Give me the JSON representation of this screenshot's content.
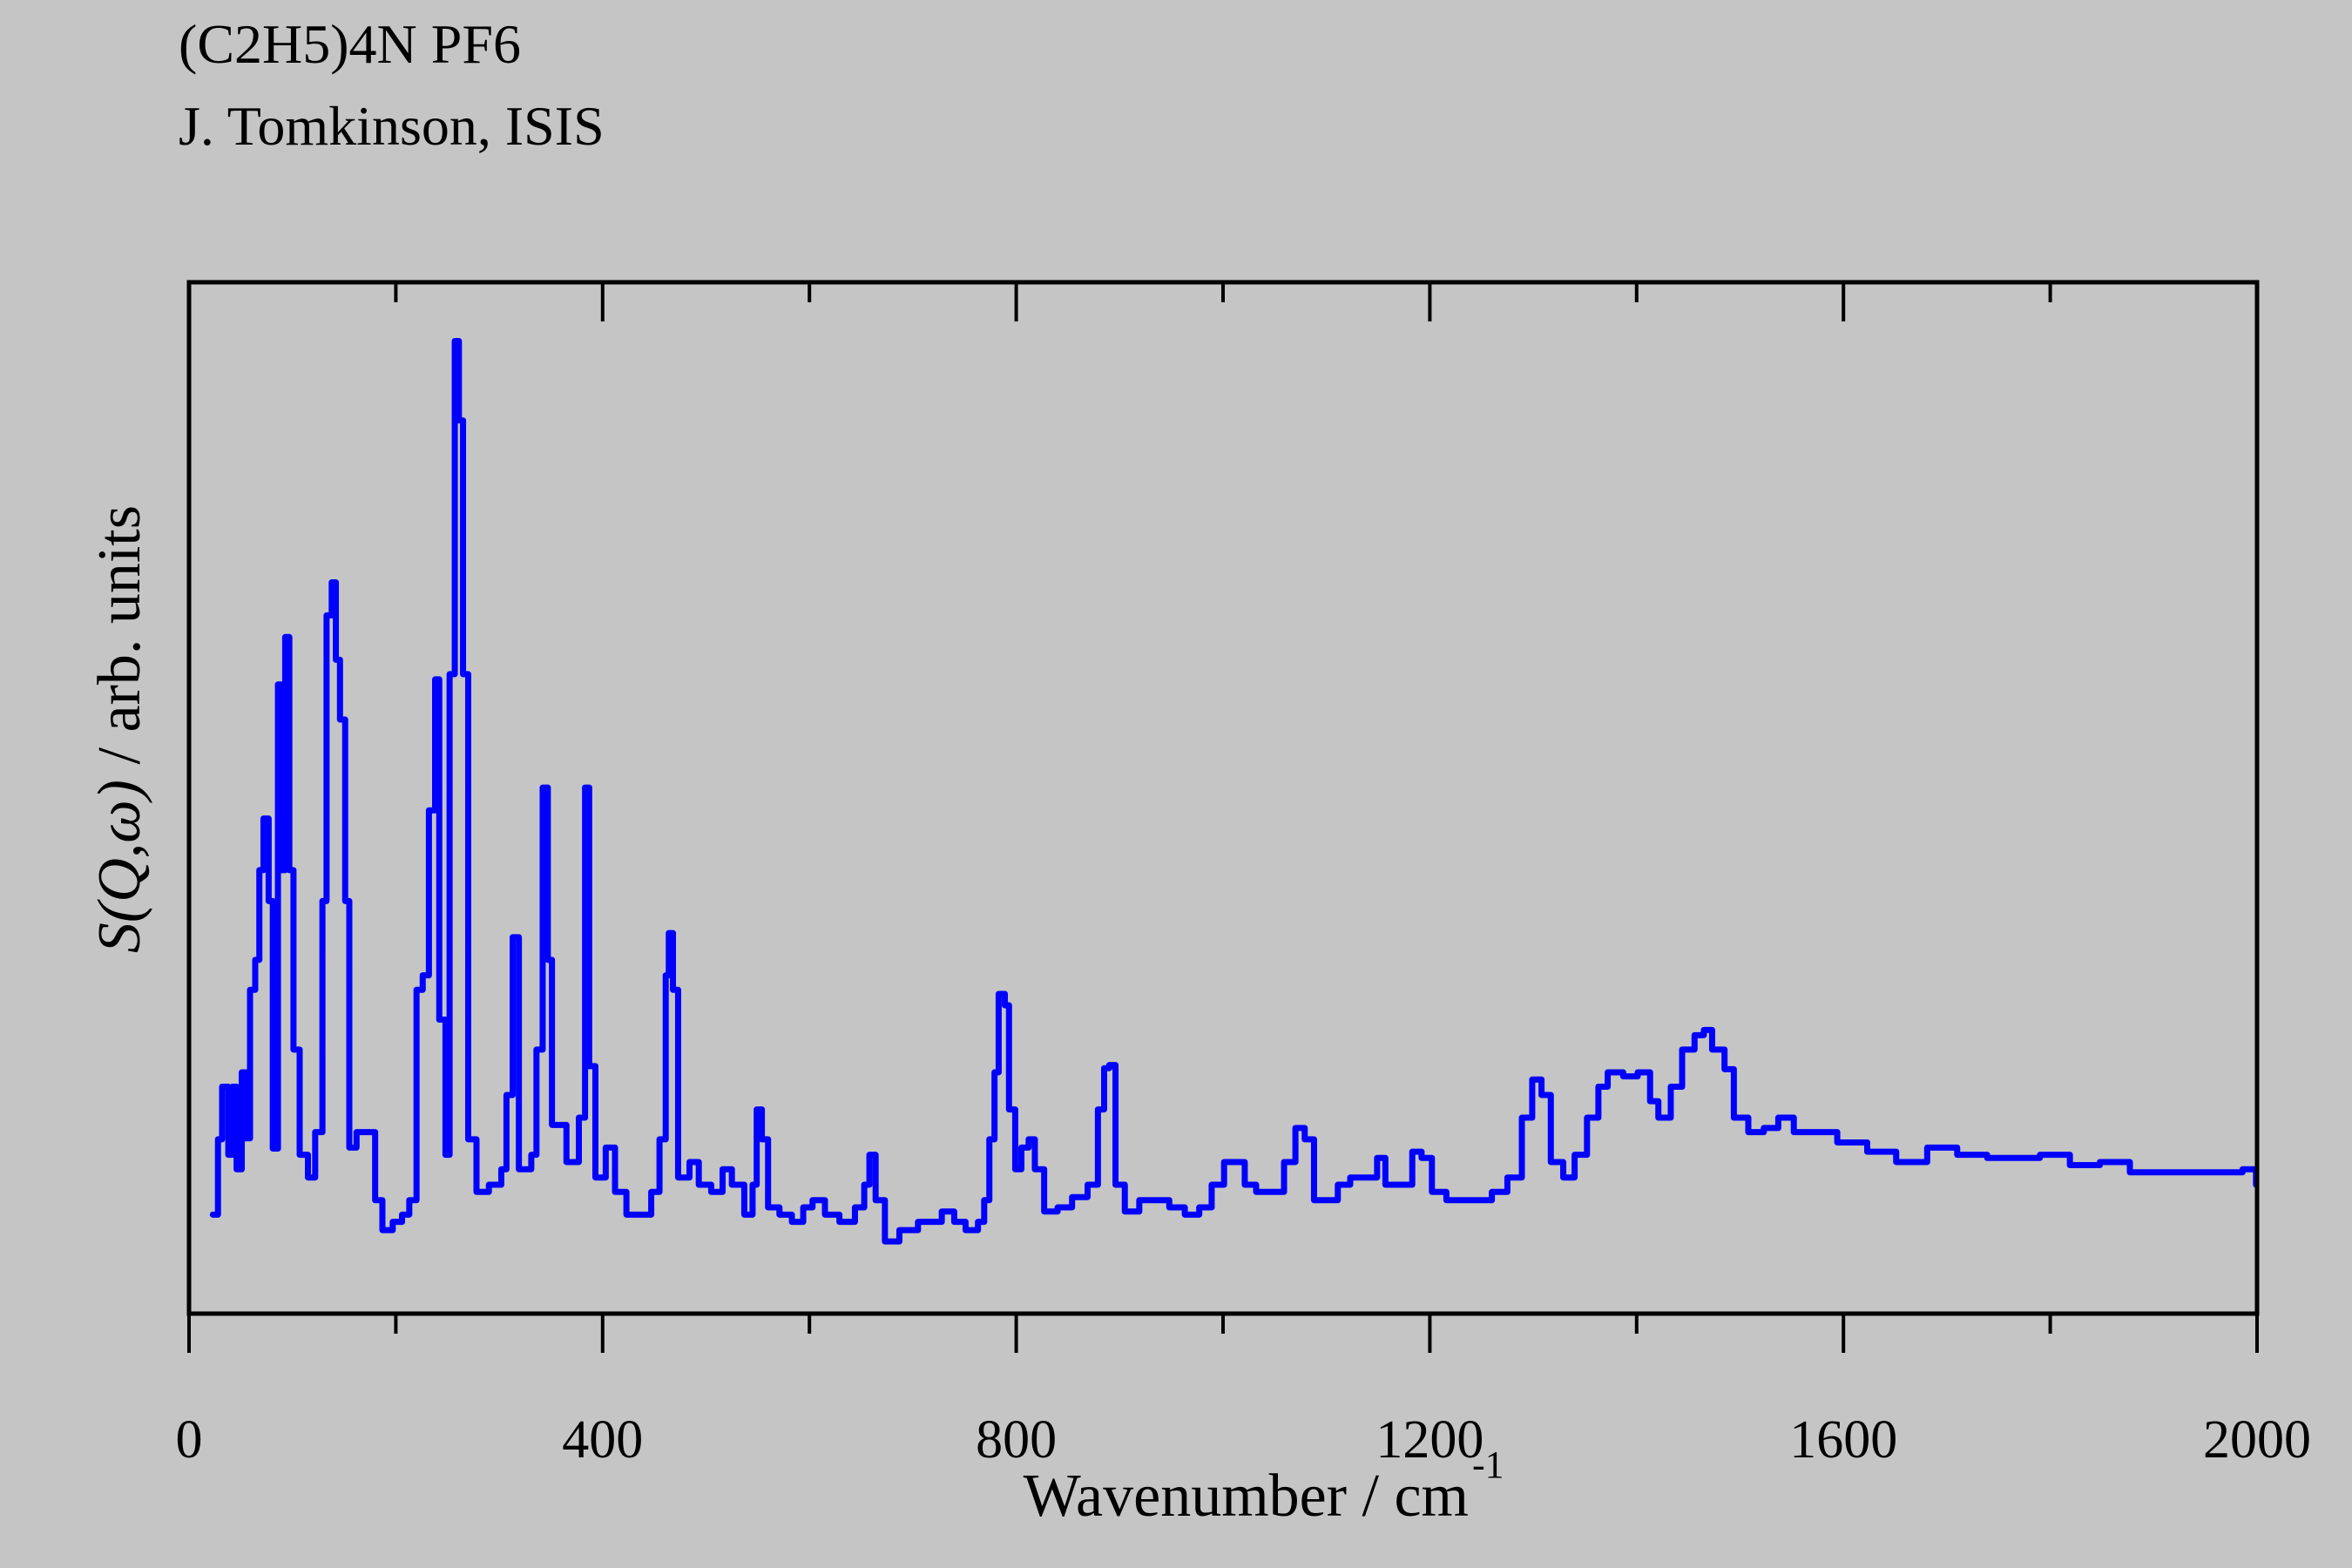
{
  "header": {
    "compound": "(C2H5)4N PF6",
    "author": "J. Tomkinson, ISIS"
  },
  "chart_data": {
    "type": "line",
    "title": "(C2H5)4N PF6",
    "subtitle": "J. Tomkinson, ISIS",
    "xlabel": "Wavenumber / cm",
    "xlabel_superscript": "-1",
    "ylabel_italic": "S(Q,ω)",
    "ylabel_rest": " / arb. units",
    "xlim": [
      0,
      2000
    ],
    "ylim": [
      0,
      100
    ],
    "x_ticks": [
      0,
      400,
      800,
      1200,
      1600,
      2000
    ],
    "x_tick_labels": [
      "0",
      "400",
      "800",
      "1200",
      "1600",
      "2000"
    ],
    "x_minor_ticks": [
      200,
      600,
      1000,
      1400,
      1800
    ],
    "y_ticks_shown": false,
    "grid": false,
    "line_style": "step",
    "series_color": "#0000ff",
    "series": [
      {
        "name": "S(Q,ω)",
        "x": [
          23,
          28,
          32,
          38,
          42,
          46,
          51,
          55,
          59,
          64,
          68,
          72,
          77,
          81,
          86,
          90,
          93,
          97,
          101,
          107,
          115,
          122,
          129,
          133,
          138,
          142,
          146,
          151,
          155,
          162,
          170,
          180,
          187,
          197,
          206,
          213,
          220,
          226,
          232,
          238,
          242,
          248,
          252,
          257,
          261,
          265,
          270,
          278,
          290,
          302,
          307,
          313,
          319,
          331,
          336,
          342,
          347,
          351,
          365,
          377,
          383,
          387,
          393,
          403,
          412,
          423,
          435,
          447,
          455,
          461,
          464,
          468,
          473,
          484,
          493,
          505,
          516,
          525,
          537,
          545,
          549,
          554,
          560,
          571,
          583,
          594,
          603,
          615,
          629,
          644,
          653,
          658,
          664,
          673,
          687,
          705,
          719,
          728,
          740,
          751,
          763,
          769,
          774,
          779,
          783,
          789,
          793,
          799,
          805,
          812,
          818,
          827,
          840,
          854,
          869,
          879,
          885,
          890,
          896,
          905,
          919,
          934,
          948,
          963,
          977,
          989,
          1001,
          1009,
          1021,
          1032,
          1044,
          1059,
          1070,
          1079,
          1088,
          1099,
          1111,
          1123,
          1137,
          1149,
          1157,
          1172,
          1183,
          1192,
          1202,
          1216,
          1239,
          1260,
          1275,
          1289,
          1299,
          1308,
          1317,
          1329,
          1340,
          1352,
          1363,
          1372,
          1387,
          1401,
          1413,
          1421,
          1433,
          1444,
          1456,
          1465,
          1473,
          1485,
          1494,
          1508,
          1523,
          1537,
          1552,
          1572,
          1594,
          1623,
          1651,
          1681,
          1710,
          1739,
          1768,
          1790,
          1819,
          1848,
          1877,
          1906,
          1935,
          1964,
          1986,
          1999
        ],
        "y": [
          9.6,
          16.9,
          22,
          15.4,
          22,
          14,
          23.4,
          17,
          31.4,
          34.3,
          43,
          48,
          40,
          16,
          61,
          43,
          65.6,
          43,
          25.6,
          15.4,
          13.2,
          17.6,
          40,
          67.7,
          70.9,
          63.4,
          57.6,
          40,
          16.1,
          17.6,
          17.6,
          11,
          8.1,
          8.9,
          9.6,
          11,
          31.4,
          32.8,
          48.8,
          61.5,
          28.5,
          15.4,
          62,
          94.3,
          86.6,
          62,
          16.9,
          11.8,
          12.5,
          14,
          21.2,
          36.5,
          14,
          15.4,
          25.6,
          51,
          34.3,
          18.3,
          14.7,
          19,
          51,
          24,
          13.2,
          16.1,
          11.8,
          9.6,
          9.6,
          11.8,
          16.9,
          32.8,
          36.9,
          31.4,
          13.2,
          14.7,
          12.5,
          11.8,
          14,
          12.5,
          9.6,
          12.5,
          19.8,
          16.9,
          10.3,
          9.6,
          8.9,
          10.3,
          11,
          9.6,
          8.9,
          10.3,
          12.5,
          15.4,
          11,
          7,
          8.1,
          8.9,
          8.9,
          9.9,
          8.9,
          8.1,
          8.9,
          11,
          16.9,
          23.4,
          31,
          29.9,
          19.8,
          14,
          16.1,
          16.9,
          14,
          9.9,
          10.3,
          11.3,
          12.5,
          19.8,
          23.8,
          24.1,
          12.5,
          9.9,
          11,
          11,
          10.3,
          9.6,
          10.3,
          12.5,
          14.7,
          14.7,
          12.5,
          11.8,
          11.8,
          14.7,
          18,
          16.9,
          11,
          11,
          12.5,
          13.2,
          13.2,
          15.1,
          12.5,
          12.5,
          15.7,
          15.1,
          11.8,
          11,
          11,
          11.8,
          13.2,
          19,
          22.7,
          21.2,
          14.7,
          13.2,
          15.4,
          19,
          22,
          23.4,
          23,
          23.4,
          20.6,
          19,
          22,
          25.6,
          27,
          27.5,
          25.6,
          23.7,
          19,
          17.6,
          18,
          19,
          17.6,
          17.6,
          16.6,
          15.7,
          14.7,
          16.1,
          15.4,
          15.1,
          15.1,
          15.4,
          14.4,
          14.7,
          13.7,
          13.7,
          13.7,
          13.7,
          14,
          12.5
        ]
      }
    ]
  }
}
